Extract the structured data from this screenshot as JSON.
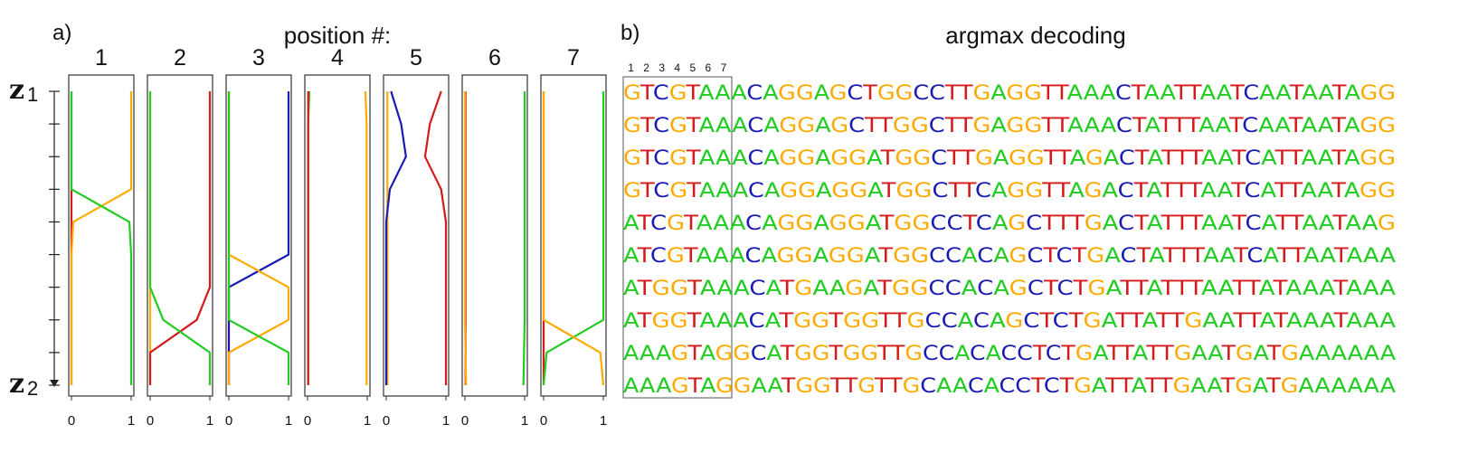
{
  "colors": {
    "A": "#22cc22",
    "C": "#1a1ab4",
    "G": "#ffaa00",
    "T": "#d41a1a"
  },
  "panel_a": {
    "label": "a)",
    "title": "position #:",
    "z_top": {
      "base": "z",
      "sub": "1"
    },
    "z_bottom": {
      "base": "z",
      "sub": "2"
    },
    "x_ticks": [
      "0",
      "1"
    ]
  },
  "panel_b": {
    "label": "b)",
    "title": "argmax decoding",
    "box_positions": [
      "1",
      "2",
      "3",
      "4",
      "5",
      "6",
      "7"
    ],
    "sequences": [
      "GTCGTAAACAGGAGCTGGCCTTGAGGTTAAACTAATTAATCAATAATAGG",
      "GTCGTAAACAGGAGCTTGGCTTGAGGTTAAACTATTTAATCAATAATAGG",
      "GTCGTAAACAGGAGGATGGCTTGAGGTTAGACTATTTAATCATTAATAGG",
      "GTCGTAAACAGGAGGATGGCTTCAGGTTAGACTATTTAATCATTAATAGG",
      "ATCGTAAACAGGAGGATGGCCTCAGCTTTGACTATTTAATCATTAATAAG",
      "ATCGTAAACAGGAGGATGGCCACAGCTCTGACTATTTAATCATTAATAAA",
      "ATGGTAAACATGAAGATGGCCACAGCTCTGATTATTTAATTATAAATAAA",
      "ATGGTAAACATGGTGGTTGCCACAGCTCTGATTATTGAATTATAAATAAA",
      "AAAGTAGGCATGGTGGTTGCCACACCTCTGATTATTGAATGATGAAAAAA",
      "AAAGTAGGAATGGTTGTTGCAACACCTCTGATTATTGAATGATGAAAAAA"
    ]
  },
  "chart_data": {
    "type": "line",
    "xlim": [
      0,
      1
    ],
    "x_axis_ticks": [
      "0",
      "1"
    ],
    "y_steps": 10,
    "panels": [
      {
        "position": "1",
        "series": [
          {
            "base": "T",
            "color": "#d41a1a",
            "values": [
              0,
              0,
              0,
              0,
              0,
              0,
              0,
              0,
              0,
              0
            ]
          },
          {
            "base": "G",
            "color": "#ffaa00",
            "values": [
              1,
              1,
              1,
              1,
              0.03,
              0,
              0,
              0,
              0,
              0
            ]
          },
          {
            "base": "A",
            "color": "#22cc22",
            "values": [
              0,
              0,
              0,
              0,
              0.97,
              1,
              1,
              1,
              1,
              1
            ]
          }
        ]
      },
      {
        "position": "2",
        "series": [
          {
            "base": "G",
            "color": "#ffaa00",
            "values": [
              0,
              0,
              0,
              0,
              0,
              0,
              0,
              0,
              0,
              0
            ]
          },
          {
            "base": "T",
            "color": "#d41a1a",
            "values": [
              1,
              1,
              1,
              1,
              1,
              1,
              1,
              0.78,
              0,
              0
            ]
          },
          {
            "base": "A",
            "color": "#22cc22",
            "values": [
              0,
              0,
              0,
              0,
              0,
              0,
              0,
              0.22,
              1,
              1
            ]
          }
        ]
      },
      {
        "position": "3",
        "series": [
          {
            "base": "T",
            "color": "#d41a1a",
            "values": [
              0,
              0,
              0,
              0,
              0,
              0,
              0,
              0,
              0,
              0
            ]
          },
          {
            "base": "C",
            "color": "#1a1ab4",
            "values": [
              1,
              1,
              1,
              1,
              1,
              1,
              0,
              0,
              0,
              0
            ]
          },
          {
            "base": "G",
            "color": "#ffaa00",
            "values": [
              0,
              0,
              0,
              0,
              0,
              0,
              1,
              1,
              0,
              0
            ]
          },
          {
            "base": "A",
            "color": "#22cc22",
            "values": [
              0,
              0,
              0,
              0,
              0,
              0,
              0,
              0,
              1,
              1
            ]
          }
        ]
      },
      {
        "position": "4",
        "series": [
          {
            "base": "A",
            "color": "#22cc22",
            "values": [
              0.03,
              0.01,
              0.01,
              0.01,
              0.01,
              0.01,
              0.01,
              0.01,
              0.01,
              0.01
            ]
          },
          {
            "base": "T",
            "color": "#d41a1a",
            "values": [
              0.01,
              0.01,
              0.01,
              0.01,
              0.01,
              0.01,
              0.01,
              0.01,
              0.01,
              0.01
            ]
          },
          {
            "base": "G",
            "color": "#ffaa00",
            "values": [
              0.97,
              0.99,
              0.99,
              0.99,
              0.99,
              0.99,
              0.99,
              0.99,
              0.99,
              0.99
            ]
          }
        ]
      },
      {
        "position": "5",
        "series": [
          {
            "base": "G",
            "color": "#ffaa00",
            "values": [
              0.02,
              0.02,
              0.02,
              0.02,
              0.02,
              0.02,
              0.02,
              0.02,
              0.02,
              0.02
            ]
          },
          {
            "base": "C",
            "color": "#1a1ab4",
            "values": [
              0.08,
              0.25,
              0.33,
              0.06,
              0,
              0,
              0,
              0,
              0,
              0
            ]
          },
          {
            "base": "T",
            "color": "#d41a1a",
            "values": [
              0.92,
              0.73,
              0.65,
              0.92,
              1,
              1,
              1,
              1,
              1,
              1
            ]
          }
        ]
      },
      {
        "position": "6",
        "series": [
          {
            "base": "T",
            "color": "#d41a1a",
            "values": [
              0.01,
              0.01,
              0.01,
              0.01,
              0.01,
              0.01,
              0.01,
              0.01,
              0.01,
              0.01
            ]
          },
          {
            "base": "A",
            "color": "#22cc22",
            "values": [
              1,
              1,
              1,
              1,
              1,
              1,
              1,
              1,
              0.99,
              0.98
            ]
          },
          {
            "base": "G",
            "color": "#ffaa00",
            "values": [
              0,
              0,
              0,
              0,
              0,
              0,
              0,
              0,
              0.01,
              0.02
            ]
          }
        ]
      },
      {
        "position": "7",
        "series": [
          {
            "base": "T",
            "color": "#d41a1a",
            "values": [
              0,
              0,
              0,
              0,
              0,
              0,
              0,
              0,
              0,
              0
            ]
          },
          {
            "base": "A",
            "color": "#22cc22",
            "values": [
              1,
              1,
              1,
              1,
              1,
              1,
              1,
              1,
              0.05,
              0
            ]
          },
          {
            "base": "G",
            "color": "#ffaa00",
            "values": [
              0,
              0,
              0,
              0,
              0,
              0,
              0,
              0,
              0.95,
              1
            ]
          }
        ]
      }
    ]
  }
}
